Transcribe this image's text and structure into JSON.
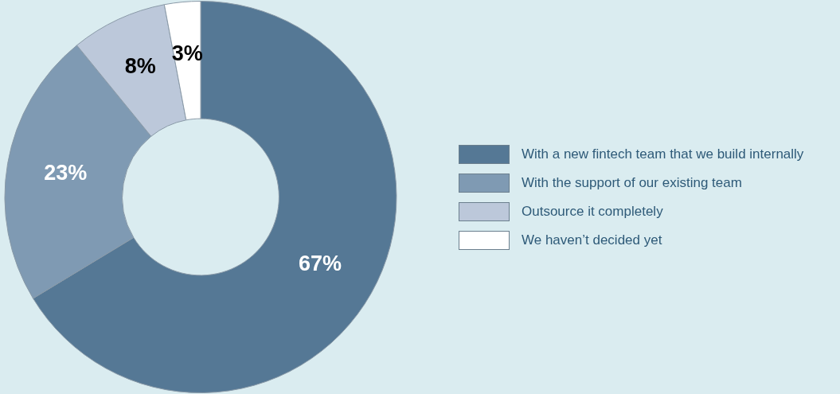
{
  "chart_data": {
    "type": "donut",
    "categories": [
      "With a new fintech team that we build internally",
      "With the support of our existing team",
      "Outsource it completely",
      "We haven’t decided yet"
    ],
    "values": [
      67,
      23,
      8,
      3
    ],
    "colors": [
      "#557895",
      "#7f9ab3",
      "#bcc8da",
      "#ffffff"
    ],
    "value_labels": [
      "67%",
      "23%",
      "8%",
      "3%"
    ],
    "legend": "right"
  }
}
